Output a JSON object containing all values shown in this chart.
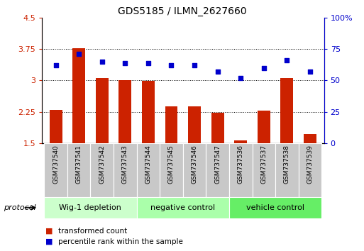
{
  "title": "GDS5185 / ILMN_2627660",
  "samples": [
    "GSM737540",
    "GSM737541",
    "GSM737542",
    "GSM737543",
    "GSM737544",
    "GSM737545",
    "GSM737546",
    "GSM737547",
    "GSM737536",
    "GSM737537",
    "GSM737538",
    "GSM737539"
  ],
  "bar_values": [
    2.3,
    3.77,
    3.06,
    3.01,
    2.99,
    2.37,
    2.38,
    2.22,
    1.57,
    2.28,
    3.06,
    1.72
  ],
  "dot_values": [
    62,
    71,
    65,
    64,
    64,
    62,
    62,
    57,
    52,
    60,
    66,
    57
  ],
  "bar_color": "#cc2200",
  "dot_color": "#0000cc",
  "ylim_left": [
    1.5,
    4.5
  ],
  "ylim_right": [
    0,
    100
  ],
  "yticks_left": [
    1.5,
    2.25,
    3.0,
    3.75,
    4.5
  ],
  "yticks_right": [
    0,
    25,
    50,
    75,
    100
  ],
  "ytick_labels_left": [
    "1.5",
    "2.25",
    "3",
    "3.75",
    "4.5"
  ],
  "ytick_labels_right": [
    "0",
    "25",
    "50",
    "75",
    "100%"
  ],
  "groups": [
    {
      "label": "Wig-1 depletion",
      "start": 0,
      "end": 4,
      "color": "#ccffcc"
    },
    {
      "label": "negative control",
      "start": 4,
      "end": 8,
      "color": "#aaffaa"
    },
    {
      "label": "vehicle control",
      "start": 8,
      "end": 12,
      "color": "#66ee66"
    }
  ],
  "protocol_label": "protocol",
  "legend_items": [
    {
      "color": "#cc2200",
      "label": "transformed count"
    },
    {
      "color": "#0000cc",
      "label": "percentile rank within the sample"
    }
  ],
  "bar_width": 0.55,
  "tick_label_color_left": "#cc2200",
  "tick_label_color_right": "#0000cc",
  "sample_box_color": "#c8c8c8",
  "grid_color": "#000000"
}
